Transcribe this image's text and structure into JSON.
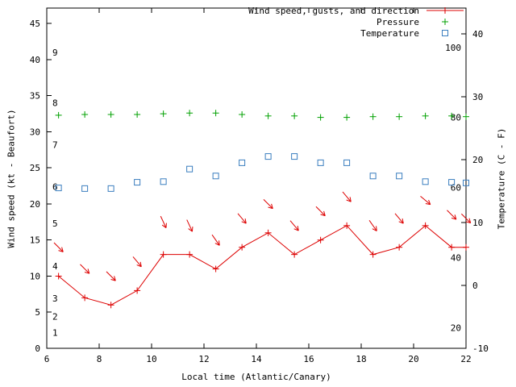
{
  "chart_data": {
    "type": "line",
    "title": "",
    "xlabel": "Local time (Atlantic/Canary)",
    "ylabel_left": "Wind speed (kt - Beaufort)",
    "ylabel_right": "Temperature (C - F)",
    "grid": false,
    "legend_position": "top-right",
    "xlim": [
      6,
      22
    ],
    "x_ticks": [
      6,
      8,
      10,
      12,
      14,
      16,
      18,
      20,
      22
    ],
    "ylim_left": [
      0,
      47.15
    ],
    "yticks_left": [
      0,
      5,
      10,
      15,
      20,
      25,
      30,
      35,
      40,
      45
    ],
    "ylim_right_c": [
      -10,
      44.1
    ],
    "yticks_right": [
      -10,
      0,
      10,
      20,
      30,
      40
    ],
    "beaufort_scale_labels": [
      {
        "label": "1",
        "kt": 2.2
      },
      {
        "label": "2",
        "kt": 4.4
      },
      {
        "label": "3",
        "kt": 6.9
      },
      {
        "label": "4",
        "kt": 11.4
      },
      {
        "label": "5",
        "kt": 17.3
      },
      {
        "label": "6",
        "kt": 22.4
      },
      {
        "label": "7",
        "kt": 28.2
      },
      {
        "label": "8",
        "kt": 34.0
      },
      {
        "label": "9",
        "kt": 41.0
      }
    ],
    "fahrenheit_scale_labels": [
      {
        "label": "20",
        "c": -6.7
      },
      {
        "label": "40",
        "c": 4.4
      },
      {
        "label": "60",
        "c": 15.6
      },
      {
        "label": "80",
        "c": 26.7
      },
      {
        "label": "100",
        "c": 37.8
      }
    ],
    "x": [
      6.45,
      7.45,
      8.45,
      9.45,
      10.45,
      11.45,
      12.45,
      13.45,
      14.45,
      15.45,
      16.45,
      17.45,
      18.45,
      19.45,
      20.45,
      21.45,
      22.0
    ],
    "series": [
      {
        "name": "Wind speed (kt)",
        "axis": "left",
        "style": "line-cross",
        "color": "#dd0000",
        "values": [
          10,
          7,
          6,
          8,
          13,
          13,
          11,
          14,
          16,
          13,
          15,
          17,
          13,
          14,
          17,
          14,
          14
        ]
      },
      {
        "name": "Wind gusts (kt) with direction arrows",
        "axis": "left",
        "style": "arrow",
        "color": "#dd0000",
        "values": [
          14,
          11,
          10,
          12,
          17.5,
          17,
          15,
          18,
          20,
          17,
          19,
          21,
          17,
          18,
          20.5,
          18.5,
          18
        ],
        "direction_from_deg": [
          315,
          315,
          315,
          320,
          335,
          335,
          325,
          320,
          315,
          320,
          315,
          320,
          325,
          320,
          310,
          315,
          315
        ]
      },
      {
        "name": "Pressure",
        "axis": "left",
        "style": "cross",
        "color": "#00a000",
        "values": [
          32.3,
          32.4,
          32.4,
          32.4,
          32.5,
          32.6,
          32.6,
          32.4,
          32.2,
          32.2,
          32.0,
          32.0,
          32.1,
          32.1,
          32.2,
          32.2,
          32.1
        ]
      },
      {
        "name": "Temperature",
        "axis": "right_c",
        "style": "open-square",
        "color": "#3a7ebf",
        "values": [
          15.5,
          15.4,
          15.4,
          16.4,
          16.5,
          18.5,
          17.4,
          19.5,
          20.5,
          20.5,
          19.5,
          19.5,
          17.4,
          17.4,
          16.5,
          16.4,
          16.3
        ]
      }
    ],
    "legend": [
      {
        "label": "Wind speed, gusts, and direction",
        "marker": "line-cross",
        "color": "#dd0000"
      },
      {
        "label": "Pressure",
        "marker": "cross",
        "color": "#00a000"
      },
      {
        "label": "Temperature",
        "marker": "open-square",
        "color": "#3a7ebf"
      }
    ]
  }
}
